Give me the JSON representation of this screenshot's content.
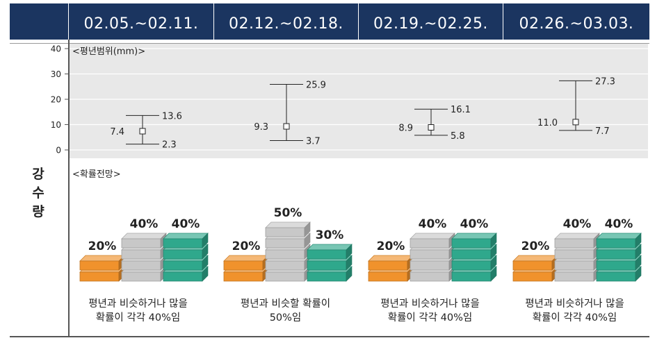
{
  "header": {
    "weeks": [
      "02.05.~02.11.",
      "02.12.~02.18.",
      "02.19.~02.25.",
      "02.26.~03.03."
    ]
  },
  "side_label": [
    "강",
    "수",
    "량"
  ],
  "range_section": {
    "title": "<평년범위(mm)>"
  },
  "prob_section": {
    "title": "<확률전망>"
  },
  "chart_data": [
    {
      "type": "errorbar",
      "title": "<평년범위(mm)>",
      "categories": [
        "02.05.~02.11.",
        "02.12.~02.18.",
        "02.19.~02.25.",
        "02.26.~03.03."
      ],
      "ylim": [
        0,
        40
      ],
      "yticks": [
        0,
        10,
        20,
        30,
        40
      ],
      "grid": true,
      "series": [
        {
          "points": [
            {
              "center": 7.4,
              "low": 2.3,
              "high": 13.6
            },
            {
              "center": 9.3,
              "low": 3.7,
              "high": 25.9
            },
            {
              "center": 8.9,
              "low": 5.8,
              "high": 16.1
            },
            {
              "center": 11.0,
              "low": 7.7,
              "high": 27.3
            }
          ]
        }
      ]
    },
    {
      "type": "bar",
      "title": "<확률전망>",
      "categories": [
        "02.05.~02.11.",
        "02.12.~02.18.",
        "02.19.~02.25.",
        "02.26.~03.03."
      ],
      "series_colors": [
        "#f0922c",
        "#c8c8c8",
        "#2fa88c"
      ],
      "weeks": [
        {
          "values": [
            20,
            40,
            40
          ],
          "labels": [
            "20%",
            "40%",
            "40%"
          ],
          "caption": [
            "평년과 비슷하거나 많을",
            "확률이 각각 40%임"
          ]
        },
        {
          "values": [
            20,
            50,
            30
          ],
          "labels": [
            "20%",
            "50%",
            "30%"
          ],
          "caption": [
            "평년과 비슷할 확률이",
            "50%임"
          ]
        },
        {
          "values": [
            20,
            40,
            40
          ],
          "labels": [
            "20%",
            "40%",
            "40%"
          ],
          "caption": [
            "평년과 비슷하거나 많을",
            "확률이 각각 40%임"
          ]
        },
        {
          "values": [
            20,
            40,
            40
          ],
          "labels": [
            "20%",
            "40%",
            "40%"
          ],
          "caption": [
            "평년과 비슷하거나 많을",
            "확률이 각각 40%임"
          ]
        }
      ]
    }
  ]
}
